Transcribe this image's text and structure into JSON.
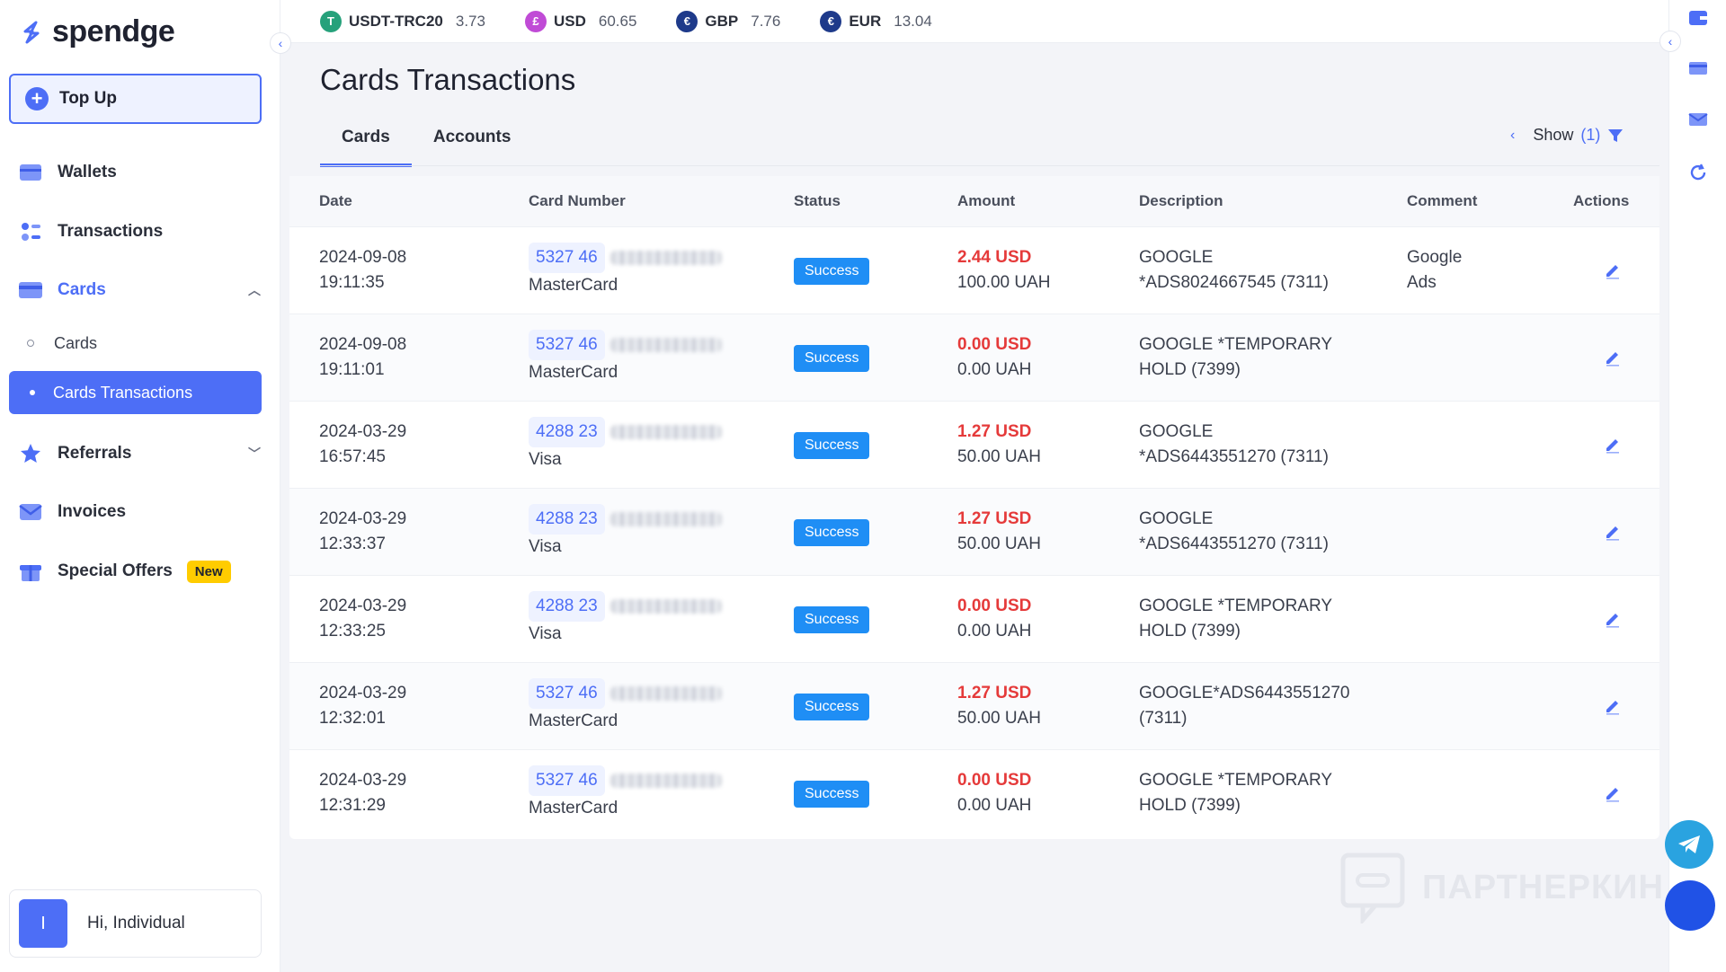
{
  "brand": {
    "name": "spendge"
  },
  "currencies": [
    {
      "code": "USDT-TRC20",
      "value": "3.73",
      "symbol": "T",
      "color": "#26a17b"
    },
    {
      "code": "USD",
      "value": "60.65",
      "symbol": "£",
      "color": "#c04bd6"
    },
    {
      "code": "GBP",
      "value": "7.76",
      "symbol": "€",
      "color": "#1e3a8a"
    },
    {
      "code": "EUR",
      "value": "13.04",
      "symbol": "€",
      "color": "#1e3a8a"
    }
  ],
  "sidebar": {
    "topup_label": "Top Up",
    "items": [
      {
        "label": "Wallets",
        "icon": "wallet-icon"
      },
      {
        "label": "Transactions",
        "icon": "transactions-icon"
      },
      {
        "label": "Cards",
        "icon": "card-icon"
      },
      {
        "label": "Referrals",
        "icon": "star-icon"
      },
      {
        "label": "Invoices",
        "icon": "mail-icon"
      },
      {
        "label": "Special Offers",
        "icon": "gift-icon",
        "badge": "New"
      }
    ],
    "cards_sub": {
      "cards": "Cards",
      "transactions": "Cards Transactions"
    },
    "user": {
      "initial": "I",
      "greeting": "Hi, Individual"
    }
  },
  "main": {
    "title": "Cards Transactions",
    "tabs": [
      "Cards",
      "Accounts"
    ],
    "filter": {
      "label": "Show",
      "count": "(1)"
    }
  },
  "table": {
    "headers": [
      "Date",
      "Card Number",
      "Status",
      "Amount",
      "Description",
      "Comment",
      "Actions"
    ],
    "rows": [
      {
        "date": "2024-09-08",
        "time": "19:11:35",
        "card": "5327 46",
        "network": "MasterCard",
        "status": "Success",
        "usd": "2.44 USD",
        "uah": "100.00 UAH",
        "desc1": "GOOGLE",
        "desc2": "*ADS8024667545 (7311)",
        "comment1": "Google",
        "comment2": "Ads"
      },
      {
        "date": "2024-09-08",
        "time": "19:11:01",
        "card": "5327 46",
        "network": "MasterCard",
        "status": "Success",
        "usd": "0.00 USD",
        "uah": "0.00 UAH",
        "desc1": "GOOGLE *TEMPORARY",
        "desc2": "HOLD (7399)",
        "comment1": "",
        "comment2": ""
      },
      {
        "date": "2024-03-29",
        "time": "16:57:45",
        "card": "4288 23",
        "network": "Visa",
        "status": "Success",
        "usd": "1.27 USD",
        "uah": "50.00 UAH",
        "desc1": "GOOGLE",
        "desc2": "*ADS6443551270 (7311)",
        "comment1": "",
        "comment2": ""
      },
      {
        "date": "2024-03-29",
        "time": "12:33:37",
        "card": "4288 23",
        "network": "Visa",
        "status": "Success",
        "usd": "1.27 USD",
        "uah": "50.00 UAH",
        "desc1": "GOOGLE",
        "desc2": "*ADS6443551270 (7311)",
        "comment1": "",
        "comment2": ""
      },
      {
        "date": "2024-03-29",
        "time": "12:33:25",
        "card": "4288 23",
        "network": "Visa",
        "status": "Success",
        "usd": "0.00 USD",
        "uah": "0.00 UAH",
        "desc1": "GOOGLE *TEMPORARY",
        "desc2": "HOLD (7399)",
        "comment1": "",
        "comment2": ""
      },
      {
        "date": "2024-03-29",
        "time": "12:32:01",
        "card": "5327 46",
        "network": "MasterCard",
        "status": "Success",
        "usd": "1.27 USD",
        "uah": "50.00 UAH",
        "desc1": "GOOGLE*ADS6443551270",
        "desc2": "(7311)",
        "comment1": "",
        "comment2": ""
      },
      {
        "date": "2024-03-29",
        "time": "12:31:29",
        "card": "5327 46",
        "network": "MasterCard",
        "status": "Success",
        "usd": "0.00 USD",
        "uah": "0.00 UAH",
        "desc1": "GOOGLE *TEMPORARY",
        "desc2": "HOLD (7399)",
        "comment1": "",
        "comment2": ""
      }
    ]
  },
  "watermark": "ПАРТНЕРКИН",
  "colors": {
    "accent": "#4d6ef6",
    "success": "#1f8ef5",
    "amount_usd": "#e53a3a"
  }
}
